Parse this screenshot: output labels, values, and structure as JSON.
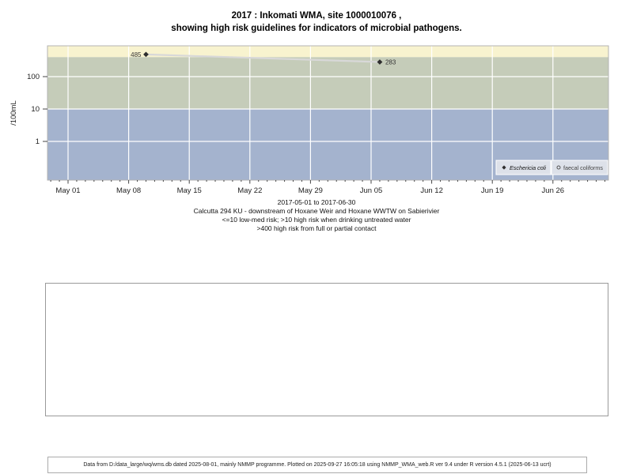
{
  "page": {
    "footer": "Data from D:/data_large/wq/wms.db dated 2025-08-01, mainly NMMP programme. Plotted on 2025-09-27 16:05:18 using NMMP_WMA_web.R ver 9.4 under R version 4.5.1 (2025-06-13 ucrt)"
  },
  "chart_data": {
    "type": "scatter",
    "title_line1": "2017 : Inkomati WMA, site 1000010076 ,",
    "title_line2": "showing high risk guidelines for indicators of microbial pathogens.",
    "ylabel": "/100mL",
    "y_scale": "log10",
    "y_ticks": [
      1,
      10,
      100
    ],
    "ylim_approx": [
      0.06,
      900
    ],
    "x_range": "2017-05-01 to 2017-06-30",
    "x_ticks": [
      {
        "label": "May 01",
        "day": 0
      },
      {
        "label": "May 08",
        "day": 7
      },
      {
        "label": "May 15",
        "day": 14
      },
      {
        "label": "May 22",
        "day": 21
      },
      {
        "label": "May 29",
        "day": 28
      },
      {
        "label": "Jun 05",
        "day": 35
      },
      {
        "label": "Jun 12",
        "day": 42
      },
      {
        "label": "Jun 19",
        "day": 49
      },
      {
        "label": "Jun 26",
        "day": 56
      }
    ],
    "risk_bands": [
      {
        "name": "full-partial-contact-high-risk",
        "min": 400,
        "max": null,
        "color": "#f8f3cf",
        "rule": ">400 high risk from full or partial contact"
      },
      {
        "name": "drinking-high-risk",
        "min": 10,
        "max": 400,
        "color": "#c5ccb9",
        "rule": ">10 high risk when drinking untreated water"
      },
      {
        "name": "low-med-risk",
        "min": null,
        "max": 10,
        "color": "#a4b3ce",
        "rule": "<=10 low-med risk"
      }
    ],
    "series": [
      {
        "name": "Eschericia coli",
        "marker": "filled-diamond",
        "marker_color": "#2e2e2e",
        "line_color": "#d8d8d8",
        "points": [
          {
            "day": 9,
            "value": 485,
            "label": "485",
            "label_side": "left"
          },
          {
            "day": 36,
            "value": 283,
            "label": "283",
            "label_side": "right"
          }
        ]
      },
      {
        "name": "faecal coliforms",
        "marker": "open-circle",
        "marker_color": "#555555",
        "points": []
      }
    ],
    "legend": [
      "Eschericia coli",
      "faecal coliforms"
    ],
    "caption_lines": [
      "2017-05-01 to 2017-06-30",
      "Calcutta 294 KU - downstream of Hoxane Weir and Hoxane WWTW on Sabierivier",
      "<=10 low-med risk; >10 high risk when drinking untreated water",
      ">400 high risk from full or partial contact"
    ]
  }
}
